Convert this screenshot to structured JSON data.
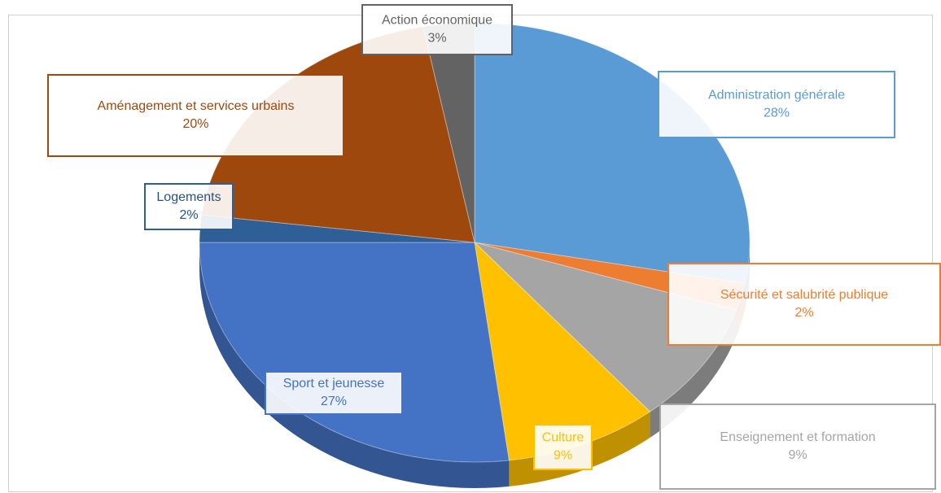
{
  "chart_data": {
    "type": "pie",
    "categories": [
      "Administration générale",
      "Sécurité et salubrité publique",
      "Enseignement et formation",
      "Culture",
      "Sport et jeunesse",
      "Logements",
      "Aménagement et services urbains",
      "Action économique"
    ],
    "values": [
      28,
      2,
      9,
      9,
      27,
      2,
      20,
      3
    ],
    "value_labels": [
      "28%",
      "2%",
      "9%",
      "9%",
      "27%",
      "2%",
      "20%",
      "3%"
    ],
    "colors": [
      "#5b9bd5",
      "#ed7d31",
      "#a5a5a5",
      "#ffc000",
      "#4472c4",
      "#2e5f96",
      "#9e480e",
      "#636363"
    ]
  }
}
